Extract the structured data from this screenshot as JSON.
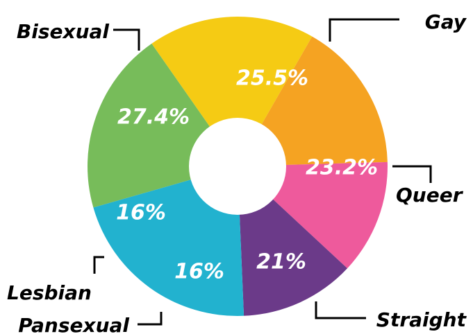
{
  "chart_data": {
    "type": "pie",
    "categories": [
      "Gay",
      "Queer",
      "Straight",
      "Pansexual",
      "Lesbian",
      "Bisexual"
    ],
    "value_labels": [
      "25.5%",
      "23.2%",
      "21%",
      "16%",
      "16%",
      "27.4%"
    ],
    "values": [
      25.5,
      23.2,
      21,
      16,
      16,
      27.4
    ],
    "colors": [
      "#77bc5a",
      "#f5cb14",
      "#f5a322",
      "#ee5a9c",
      "#6b3a89",
      "#22b2cf"
    ],
    "donut": true
  }
}
